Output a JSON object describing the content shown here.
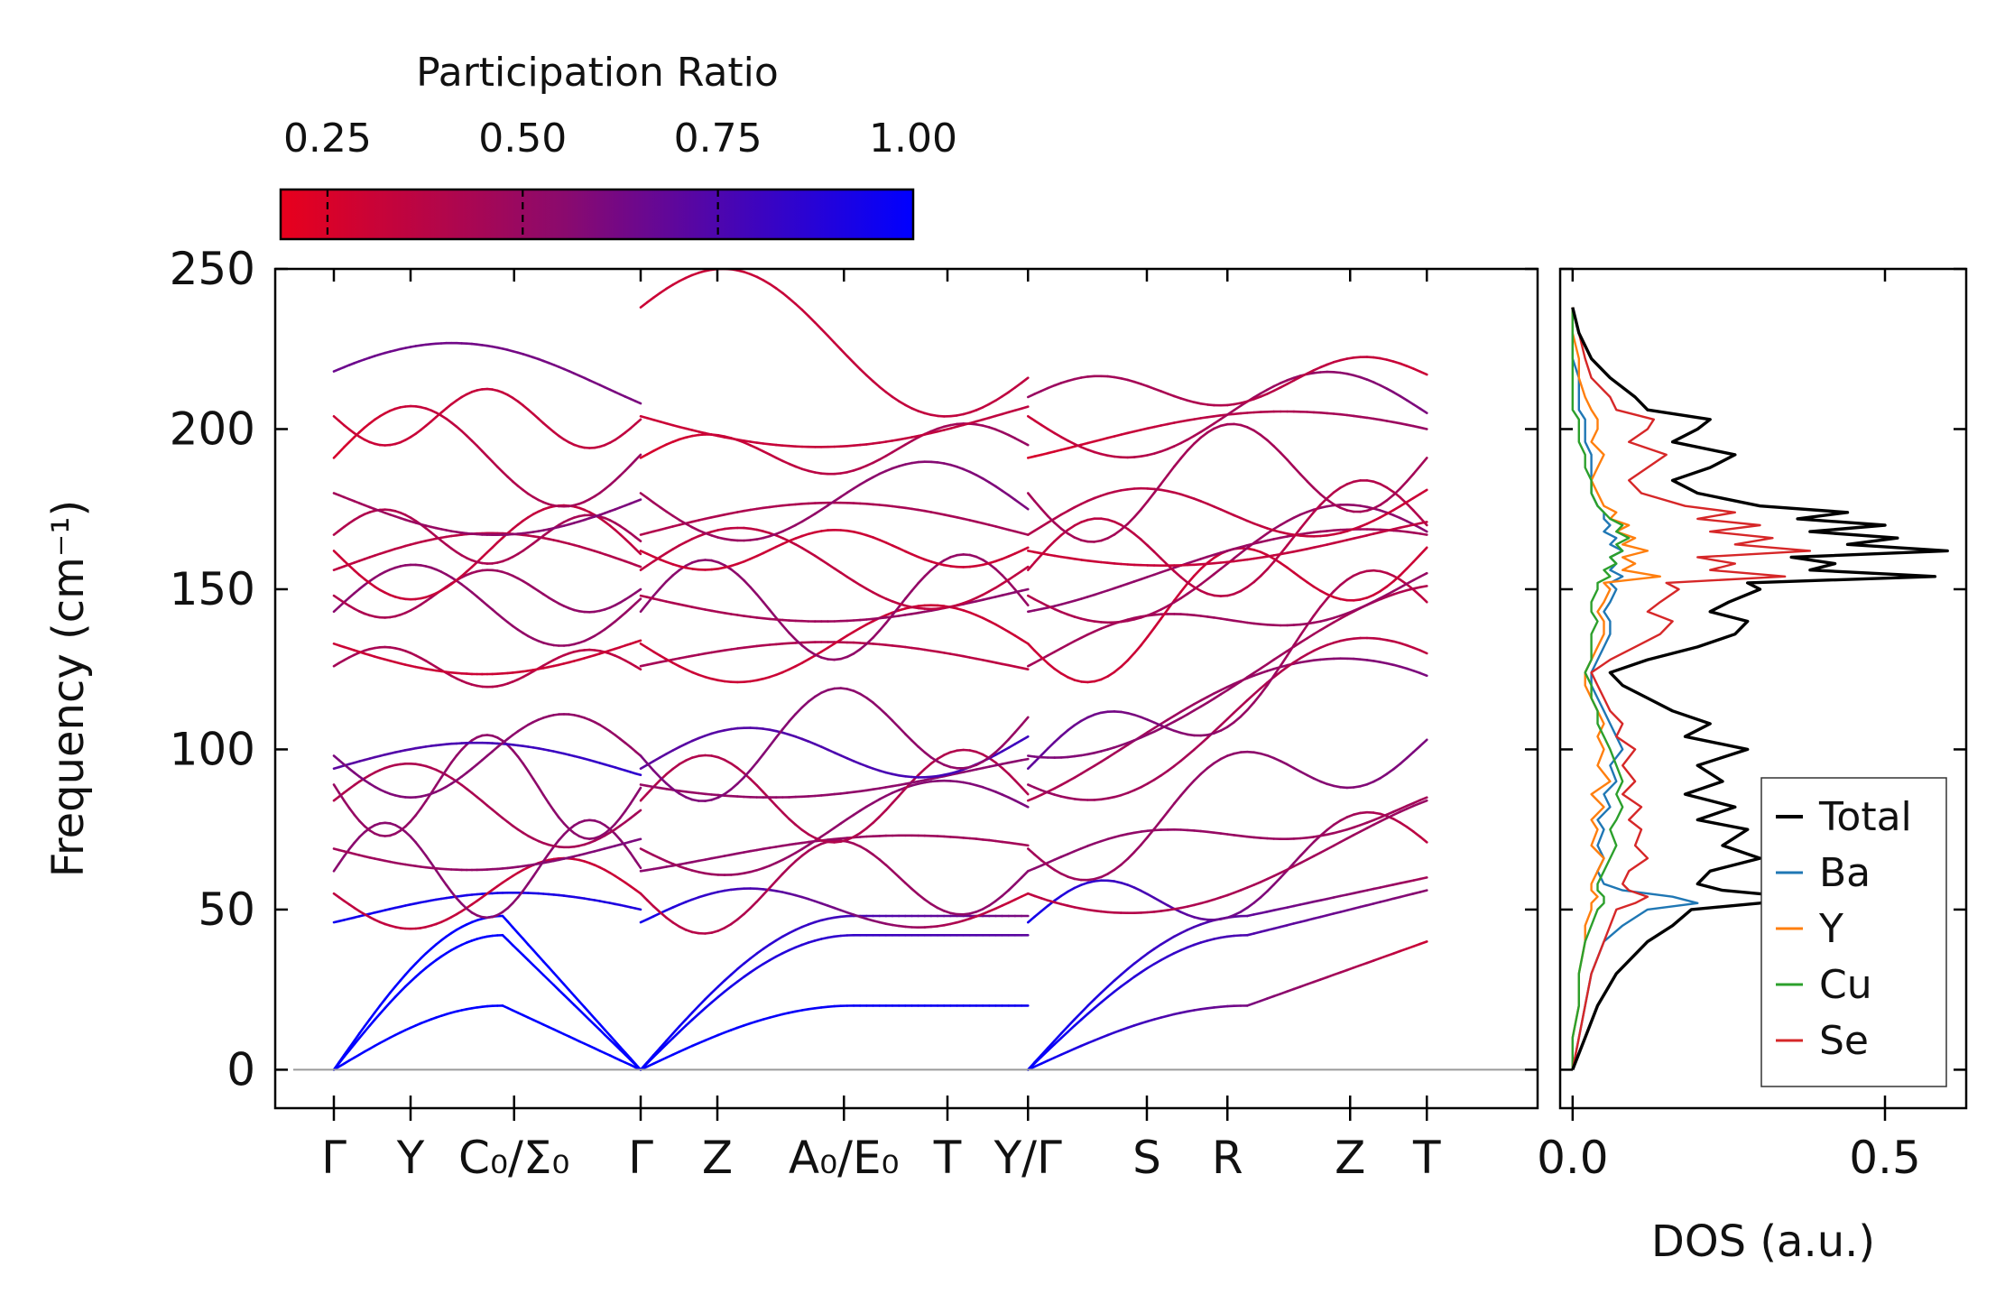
{
  "chart_data": [
    {
      "type": "line",
      "title": "",
      "xlabel": "",
      "ylabel": "Frequency (cm⁻¹)",
      "ylim": [
        -12,
        250
      ],
      "yticks": [
        0,
        50,
        100,
        150,
        200,
        250
      ],
      "ytick_labels": [
        "0",
        "50",
        "100",
        "150",
        "200",
        "250"
      ],
      "x_range": [
        0,
        3.0
      ],
      "kpoints": [
        {
          "x": 0.0,
          "label": "Γ"
        },
        {
          "x": 0.2,
          "label": "Y"
        },
        {
          "x": 0.47,
          "label": "C₀/Σ₀"
        },
        {
          "x": 0.8,
          "label": "Γ"
        },
        {
          "x": 1.0,
          "label": "Z"
        },
        {
          "x": 1.33,
          "label": "A₀/E₀"
        },
        {
          "x": 1.6,
          "label": "T"
        },
        {
          "x": 1.81,
          "label": "Y/Γ"
        },
        {
          "x": 2.12,
          "label": "S"
        },
        {
          "x": 2.33,
          "label": "R"
        },
        {
          "x": 2.65,
          "label": "Z"
        },
        {
          "x": 2.85,
          "label": "T"
        }
      ],
      "segments": [
        {
          "x0": 0.0,
          "x1": 0.8,
          "start": [
            0,
            0,
            0,
            46,
            55,
            62,
            69,
            84,
            89,
            94,
            98,
            126,
            133,
            143,
            148,
            156,
            162,
            167,
            180,
            191,
            204,
            218
          ],
          "end": [
            0,
            0,
            0,
            50,
            55,
            63,
            72,
            81,
            88,
            92,
            98,
            125,
            134,
            147,
            150,
            157,
            161,
            165,
            178,
            192,
            203,
            208
          ],
          "pr_start": [
            1.0,
            1.0,
            1.0,
            0.95,
            0.35,
            0.55,
            0.45,
            0.4,
            0.5,
            0.7,
            0.6,
            0.45,
            0.3,
            0.55,
            0.4,
            0.35,
            0.3,
            0.4,
            0.45,
            0.25,
            0.3,
            0.65
          ],
          "pr_end": [
            1.0,
            1.0,
            1.0,
            0.9,
            0.3,
            0.55,
            0.6,
            0.45,
            0.55,
            0.85,
            0.5,
            0.35,
            0.3,
            0.5,
            0.55,
            0.4,
            0.35,
            0.45,
            0.6,
            0.5,
            0.35,
            0.6
          ]
        },
        {
          "x0": 0.8,
          "x1": 1.81,
          "start": [
            0,
            0,
            0,
            46,
            55,
            62,
            69,
            84,
            89,
            94,
            98,
            126,
            133,
            143,
            148,
            156,
            162,
            167,
            180,
            191,
            204,
            238
          ],
          "end": [
            20,
            42,
            48,
            55,
            62,
            70,
            82,
            86,
            97,
            104,
            110,
            125,
            133,
            145,
            150,
            157,
            163,
            167,
            175,
            195,
            207,
            216
          ],
          "pr_start": [
            1.0,
            1.0,
            1.0,
            0.95,
            0.35,
            0.55,
            0.45,
            0.4,
            0.5,
            0.7,
            0.6,
            0.45,
            0.3,
            0.55,
            0.4,
            0.35,
            0.3,
            0.4,
            0.45,
            0.25,
            0.3,
            0.3
          ],
          "pr_end": [
            0.95,
            0.7,
            0.6,
            0.3,
            0.55,
            0.45,
            0.6,
            0.4,
            0.55,
            0.8,
            0.5,
            0.35,
            0.3,
            0.5,
            0.55,
            0.35,
            0.3,
            0.45,
            0.6,
            0.5,
            0.35,
            0.35
          ]
        },
        {
          "x0": 1.81,
          "x1": 2.85,
          "start": [
            0,
            0,
            0,
            46,
            55,
            62,
            69,
            84,
            89,
            94,
            98,
            126,
            133,
            143,
            148,
            156,
            162,
            167,
            180,
            191,
            204,
            210
          ],
          "end": [
            40,
            56,
            60,
            71,
            84,
            85,
            103,
            123,
            130,
            146,
            151,
            155,
            163,
            167,
            168,
            170,
            171,
            181,
            191,
            200,
            205,
            217
          ],
          "pr_start": [
            1.0,
            1.0,
            1.0,
            0.95,
            0.35,
            0.55,
            0.45,
            0.4,
            0.5,
            0.7,
            0.6,
            0.45,
            0.3,
            0.55,
            0.4,
            0.35,
            0.3,
            0.4,
            0.45,
            0.25,
            0.3,
            0.5
          ],
          "pr_end": [
            0.3,
            0.55,
            0.45,
            0.35,
            0.5,
            0.45,
            0.6,
            0.6,
            0.35,
            0.35,
            0.4,
            0.5,
            0.3,
            0.45,
            0.55,
            0.4,
            0.35,
            0.3,
            0.45,
            0.5,
            0.6,
            0.3
          ]
        }
      ],
      "zero_line": 0
    },
    {
      "type": "line",
      "xlabel": "DOS (a.u.)",
      "ylabel": "",
      "xlim": [
        -0.02,
        0.63
      ],
      "ylim": [
        -12,
        250
      ],
      "xticks": [
        0.0,
        0.5
      ],
      "xtick_labels": [
        "0.0",
        "0.5"
      ],
      "legend_position": "lower-right",
      "y": [
        0,
        10,
        20,
        30,
        40,
        45,
        50,
        52,
        54,
        56,
        58,
        62,
        66,
        70,
        75,
        78,
        82,
        86,
        90,
        95,
        100,
        104,
        108,
        112,
        116,
        120,
        124,
        128,
        132,
        136,
        140,
        143,
        146,
        150,
        152,
        154,
        156,
        158,
        160,
        162,
        164,
        166,
        168,
        170,
        172,
        174,
        176,
        180,
        184,
        188,
        192,
        196,
        200,
        203,
        206,
        210,
        216,
        222,
        230,
        238
      ],
      "series": [
        {
          "name": "Total",
          "color": "#000000",
          "values": [
            0.0,
            0.02,
            0.04,
            0.07,
            0.12,
            0.16,
            0.19,
            0.3,
            0.35,
            0.24,
            0.2,
            0.22,
            0.3,
            0.24,
            0.28,
            0.2,
            0.26,
            0.18,
            0.24,
            0.2,
            0.28,
            0.18,
            0.22,
            0.16,
            0.12,
            0.08,
            0.06,
            0.12,
            0.2,
            0.26,
            0.28,
            0.22,
            0.25,
            0.3,
            0.28,
            0.58,
            0.38,
            0.42,
            0.35,
            0.6,
            0.44,
            0.52,
            0.38,
            0.5,
            0.36,
            0.44,
            0.3,
            0.2,
            0.16,
            0.22,
            0.26,
            0.16,
            0.2,
            0.22,
            0.12,
            0.1,
            0.06,
            0.03,
            0.01,
            0.0
          ]
        },
        {
          "name": "Ba",
          "color": "#1f77b4",
          "values": [
            0.0,
            0.01,
            0.02,
            0.03,
            0.05,
            0.08,
            0.12,
            0.2,
            0.16,
            0.08,
            0.05,
            0.04,
            0.05,
            0.04,
            0.05,
            0.04,
            0.06,
            0.05,
            0.07,
            0.06,
            0.08,
            0.07,
            0.06,
            0.05,
            0.04,
            0.03,
            0.03,
            0.04,
            0.05,
            0.06,
            0.06,
            0.05,
            0.06,
            0.07,
            0.06,
            0.08,
            0.06,
            0.07,
            0.06,
            0.08,
            0.06,
            0.07,
            0.05,
            0.06,
            0.05,
            0.05,
            0.04,
            0.03,
            0.03,
            0.03,
            0.03,
            0.02,
            0.02,
            0.02,
            0.01,
            0.01,
            0.01,
            0.0,
            0.0,
            0.0
          ]
        },
        {
          "name": "Y",
          "color": "#ff7f0e",
          "values": [
            0.0,
            0.0,
            0.01,
            0.01,
            0.02,
            0.02,
            0.03,
            0.03,
            0.04,
            0.03,
            0.03,
            0.04,
            0.05,
            0.03,
            0.04,
            0.03,
            0.05,
            0.03,
            0.06,
            0.04,
            0.05,
            0.04,
            0.05,
            0.04,
            0.03,
            0.02,
            0.02,
            0.03,
            0.04,
            0.05,
            0.05,
            0.04,
            0.05,
            0.06,
            0.05,
            0.14,
            0.08,
            0.1,
            0.08,
            0.12,
            0.08,
            0.1,
            0.07,
            0.09,
            0.06,
            0.07,
            0.05,
            0.04,
            0.03,
            0.04,
            0.05,
            0.03,
            0.04,
            0.04,
            0.03,
            0.02,
            0.01,
            0.01,
            0.0,
            0.0
          ]
        },
        {
          "name": "Cu",
          "color": "#2ca02c",
          "values": [
            0.0,
            0.0,
            0.01,
            0.01,
            0.02,
            0.03,
            0.04,
            0.05,
            0.05,
            0.04,
            0.04,
            0.05,
            0.06,
            0.07,
            0.06,
            0.07,
            0.08,
            0.07,
            0.08,
            0.07,
            0.06,
            0.05,
            0.04,
            0.04,
            0.03,
            0.03,
            0.02,
            0.03,
            0.03,
            0.03,
            0.04,
            0.03,
            0.03,
            0.04,
            0.04,
            0.06,
            0.05,
            0.07,
            0.06,
            0.08,
            0.07,
            0.09,
            0.07,
            0.08,
            0.06,
            0.05,
            0.04,
            0.03,
            0.03,
            0.02,
            0.02,
            0.01,
            0.01,
            0.01,
            0.0,
            0.0,
            0.0,
            0.0,
            0.0,
            0.0
          ]
        },
        {
          "name": "Se",
          "color": "#d62728",
          "values": [
            0.0,
            0.01,
            0.02,
            0.03,
            0.05,
            0.06,
            0.07,
            0.1,
            0.12,
            0.09,
            0.08,
            0.09,
            0.12,
            0.1,
            0.11,
            0.09,
            0.11,
            0.08,
            0.1,
            0.08,
            0.1,
            0.07,
            0.08,
            0.06,
            0.05,
            0.04,
            0.03,
            0.06,
            0.1,
            0.14,
            0.16,
            0.12,
            0.14,
            0.17,
            0.15,
            0.34,
            0.22,
            0.26,
            0.2,
            0.38,
            0.26,
            0.32,
            0.22,
            0.3,
            0.2,
            0.26,
            0.18,
            0.11,
            0.09,
            0.12,
            0.15,
            0.09,
            0.12,
            0.13,
            0.07,
            0.06,
            0.03,
            0.02,
            0.01,
            0.0
          ]
        }
      ]
    },
    {
      "type": "colorbar",
      "title": "Participation Ratio",
      "range": [
        0.19,
        1.0
      ],
      "ticks": [
        0.25,
        0.5,
        0.75,
        1.0
      ],
      "tick_labels": [
        "0.25",
        "0.50",
        "0.75",
        "1.00"
      ],
      "colors": [
        "#e8001c",
        "#8a0a6e",
        "#0000ff"
      ]
    }
  ]
}
